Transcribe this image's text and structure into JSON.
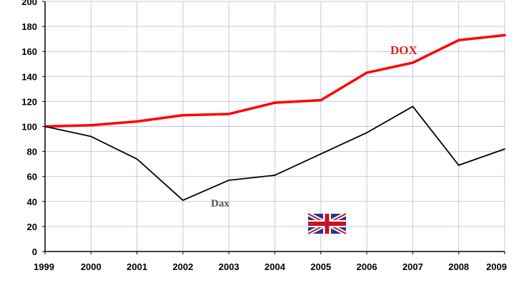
{
  "chart_data": {
    "type": "line",
    "title": "",
    "xlabel": "",
    "ylabel": "",
    "x": [
      1999,
      2000,
      2001,
      2002,
      2003,
      2004,
      2005,
      2006,
      2007,
      2008,
      2009
    ],
    "xlim": [
      1999,
      2009
    ],
    "ylim": [
      0,
      200
    ],
    "yticks": [
      0,
      20,
      40,
      60,
      80,
      100,
      120,
      140,
      160,
      180,
      200
    ],
    "grid": true,
    "series": [
      {
        "name": "DOX",
        "color": "#ff0000",
        "values": [
          100,
          101,
          104,
          109,
          110,
          119,
          121,
          143,
          151,
          169,
          173
        ]
      },
      {
        "name": "Dax",
        "color": "#000000",
        "label_color": "#555555",
        "values": [
          100,
          92,
          74,
          41,
          57,
          61,
          78,
          95,
          116,
          69,
          82
        ]
      }
    ],
    "grid_color": "#c4c4ee",
    "icons": [
      "uk-flag-icon"
    ]
  }
}
